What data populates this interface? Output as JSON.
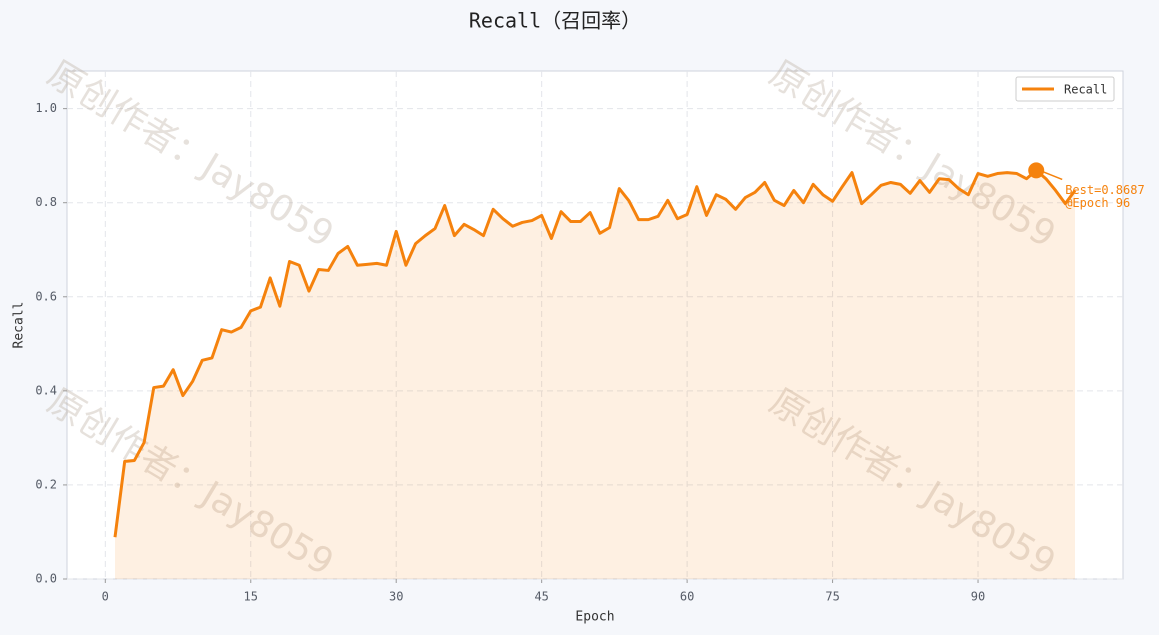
{
  "chart_data": {
    "type": "line",
    "title": "Recall（召回率）",
    "x_label": "Epoch",
    "y_label": "Recall",
    "x": [
      1,
      2,
      3,
      4,
      5,
      6,
      7,
      8,
      9,
      10,
      11,
      12,
      13,
      14,
      15,
      16,
      17,
      18,
      19,
      20,
      21,
      22,
      23,
      24,
      25,
      26,
      27,
      28,
      29,
      30,
      31,
      32,
      33,
      34,
      35,
      36,
      37,
      38,
      39,
      40,
      41,
      42,
      43,
      44,
      45,
      46,
      47,
      48,
      49,
      50,
      51,
      52,
      53,
      54,
      55,
      56,
      57,
      58,
      59,
      60,
      61,
      62,
      63,
      64,
      65,
      66,
      67,
      68,
      69,
      70,
      71,
      72,
      73,
      74,
      75,
      76,
      77,
      78,
      79,
      80,
      81,
      82,
      83,
      84,
      85,
      86,
      87,
      88,
      89,
      90,
      91,
      92,
      93,
      94,
      95,
      96,
      97,
      98,
      99,
      100
    ],
    "series": [
      {
        "name": "Recall",
        "color": "#f5820d",
        "values": [
          0.089,
          0.25,
          0.252,
          0.29,
          0.407,
          0.41,
          0.445,
          0.39,
          0.42,
          0.465,
          0.47,
          0.53,
          0.525,
          0.535,
          0.57,
          0.578,
          0.64,
          0.58,
          0.675,
          0.667,
          0.612,
          0.658,
          0.656,
          0.692,
          0.707,
          0.667,
          0.669,
          0.671,
          0.667,
          0.739,
          0.667,
          0.713,
          0.73,
          0.745,
          0.794,
          0.73,
          0.754,
          0.743,
          0.73,
          0.786,
          0.766,
          0.75,
          0.758,
          0.762,
          0.773,
          0.724,
          0.781,
          0.76,
          0.76,
          0.779,
          0.735,
          0.747,
          0.83,
          0.804,
          0.764,
          0.764,
          0.771,
          0.805,
          0.766,
          0.775,
          0.834,
          0.773,
          0.817,
          0.807,
          0.786,
          0.811,
          0.822,
          0.843,
          0.805,
          0.794,
          0.826,
          0.8,
          0.839,
          0.817,
          0.803,
          0.834,
          0.864,
          0.798,
          0.817,
          0.837,
          0.843,
          0.839,
          0.82,
          0.847,
          0.822,
          0.851,
          0.849,
          0.83,
          0.817,
          0.862,
          0.856,
          0.862,
          0.864,
          0.862,
          0.851,
          0.8687,
          0.851,
          0.826,
          0.798,
          0.826
        ]
      }
    ],
    "best_index": 95,
    "annotation": [
      "Best=0.8687",
      "@Epoch 96"
    ],
    "xlim": [
      -3.95,
      104.95
    ],
    "xticks": [
      0,
      15,
      30,
      45,
      60,
      75,
      90
    ],
    "ylim": [
      0,
      1.08
    ],
    "yticks": [
      {
        "value": 0,
        "label": "0.0"
      },
      0.2,
      0.4,
      0.6,
      0.8,
      {
        "value": 1,
        "label": "1.0"
      }
    ],
    "grid": true,
    "legend": "upper right",
    "watermark": [
      "原创作者：Jay8059",
      "原创作者：Jay8059",
      "原创作者：Jay8059",
      "原创作者：Jay8059"
    ]
  }
}
